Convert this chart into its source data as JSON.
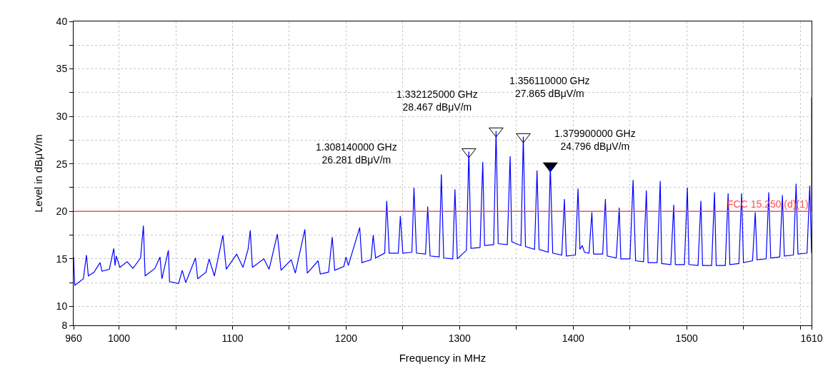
{
  "chart_data": {
    "type": "line",
    "xlabel": "Frequency in MHz",
    "ylabel": "Level in dBμV/m",
    "xlim": [
      960,
      1610
    ],
    "xticks": [
      960,
      1000,
      {
        "value": 1050,
        "label": null
      },
      1100,
      {
        "value": 1150,
        "label": null
      },
      1200,
      {
        "value": 1250,
        "label": null
      },
      1300,
      {
        "value": 1350,
        "label": null
      },
      1400,
      {
        "value": 1450,
        "label": null
      },
      1500,
      {
        "value": 1550,
        "label": null
      },
      {
        "value": 1600,
        "label": null
      },
      1610
    ],
    "ylim": [
      8,
      40
    ],
    "yticks": [
      8,
      10,
      {
        "value": 12.5,
        "label": null
      },
      15,
      {
        "value": 17.5,
        "label": null
      },
      20,
      {
        "value": 22.5,
        "label": null
      },
      25,
      {
        "value": 27.5,
        "label": null
      },
      30,
      {
        "value": 32.5,
        "label": null
      },
      35,
      {
        "value": 37.5,
        "label": null
      },
      40
    ],
    "grid": true,
    "legend": false,
    "series": [
      {
        "color": "#0000ff",
        "line_style": "solid",
        "x": [
          960,
          961,
          968.6,
          971.3,
          973,
          978,
          983.3,
          985,
          991.5,
          995.4,
          996.5,
          997.6,
          1000.8,
          1007.2,
          1012.3,
          1019,
          1021.5,
          1023,
          1031.6,
          1036.1,
          1037.8,
          1043.5,
          1044.5,
          1052.5,
          1055.7,
          1058.8,
          1067.4,
          1069.3,
          1076.6,
          1079.4,
          1084,
          1091.5,
          1094.5,
          1103.7,
          1109.2,
          1113.7,
          1115.6,
          1117.5,
          1127.6,
          1132.2,
          1139.5,
          1142.7,
          1151.7,
          1155.3,
          1163.7,
          1165.8,
          1175.4,
          1177.3,
          1184.6,
          1187.8,
          1190,
          1198,
          1200,
          1202,
          1212,
          1214,
          1222,
          1223.9,
          1226,
          1234,
          1235.8,
          1238,
          1246,
          1247.8,
          1250,
          1258,
          1259.8,
          1262,
          1270,
          1271.9,
          1274,
          1282,
          1283.9,
          1286,
          1294,
          1295.9,
          1298,
          1306,
          1308.14,
          1310,
          1318,
          1320.4,
          1322,
          1330,
          1332.125,
          1334,
          1342,
          1344.5,
          1346,
          1354,
          1356.11,
          1358,
          1366,
          1368.2,
          1370,
          1378,
          1379.9,
          1382,
          1390,
          1392.3,
          1394,
          1402,
          1404.3,
          1406,
          1408,
          1410,
          1414,
          1416.5,
          1418,
          1426,
          1428.4,
          1430,
          1438,
          1440.6,
          1442,
          1450,
          1452.8,
          1455,
          1462,
          1464.5,
          1466,
          1474,
          1476.7,
          1478,
          1486,
          1488.6,
          1490,
          1498,
          1500.6,
          1502,
          1510,
          1512.5,
          1514,
          1522,
          1524.5,
          1526,
          1534,
          1536.5,
          1538,
          1546,
          1548.4,
          1550,
          1558,
          1560.4,
          1562,
          1570,
          1572.3,
          1574,
          1582,
          1584.3,
          1586,
          1594,
          1596.4,
          1598,
          1606,
          1608.4,
          1610
        ],
        "values": [
          15.2,
          12.2,
          12.9,
          15.4,
          13.2,
          13.6,
          14.6,
          13.7,
          13.9,
          16.1,
          14.3,
          15.3,
          14.1,
          14.7,
          14.0,
          15.1,
          18.5,
          13.2,
          14.0,
          15.2,
          12.9,
          15.9,
          12.6,
          12.4,
          13.8,
          12.5,
          15.1,
          12.9,
          13.6,
          15.0,
          13.2,
          17.5,
          13.9,
          15.5,
          14.1,
          16.0,
          18.0,
          14.1,
          15.0,
          13.9,
          17.6,
          13.8,
          14.9,
          13.5,
          18.1,
          13.5,
          14.8,
          13.4,
          13.6,
          17.3,
          13.8,
          14.2,
          15.2,
          14.3,
          18.3,
          14.6,
          14.9,
          17.5,
          15.1,
          15.6,
          21.1,
          15.6,
          15.6,
          19.5,
          15.6,
          15.7,
          22.5,
          15.6,
          15.5,
          20.5,
          15.3,
          15.2,
          23.9,
          15.1,
          15.0,
          22.3,
          15.0,
          15.9,
          26.281,
          16.1,
          16.2,
          25.2,
          16.4,
          16.5,
          28.467,
          16.6,
          16.5,
          25.8,
          16.8,
          16.4,
          27.865,
          16.3,
          16.0,
          24.3,
          16.0,
          15.7,
          24.796,
          15.6,
          15.4,
          21.3,
          15.3,
          15.4,
          22.4,
          16.0,
          16.4,
          15.7,
          15.6,
          19.9,
          15.5,
          15.5,
          21.3,
          15.3,
          15.1,
          20.4,
          15.0,
          15.0,
          23.3,
          14.8,
          14.7,
          22.2,
          14.6,
          14.6,
          23.2,
          14.5,
          14.4,
          20.7,
          14.4,
          14.4,
          22.5,
          14.4,
          14.3,
          21.1,
          14.3,
          14.3,
          22.0,
          14.3,
          14.3,
          21.9,
          14.4,
          14.5,
          21.9,
          14.6,
          14.8,
          19.9,
          14.9,
          15.0,
          22.0,
          15.1,
          15.2,
          21.7,
          15.3,
          15.4,
          22.9,
          15.5,
          15.6,
          22.7,
          15.6
        ]
      },
      {
        "type": "line",
        "name": "FCC 15.250 (d)(1)",
        "color": "#ff4d4d",
        "line_style": "solid",
        "x": [
          960,
          1610,
          1610
        ],
        "values": [
          20,
          20,
          32
        ]
      },
      {
        "type": "scatter",
        "color": "#ffffff",
        "marker": "triangle",
        "x": [
          1308.14,
          1332.125,
          1356.11
        ],
        "values": [
          26.281,
          28.467,
          27.865
        ]
      },
      {
        "type": "scatter",
        "color": "#000000",
        "marker": "triangle",
        "x": [
          1379.9
        ],
        "values": [
          24.796
        ]
      }
    ],
    "annotations": [
      "1.308140000 GHz\n26.281 dBμV/m",
      "1.332125000 GHz\n28.467 dBμV/m",
      "1.356110000 GHz\n27.865 dBμV/m",
      "1.379900000 GHz\n24.796 dBμV/m"
    ]
  }
}
